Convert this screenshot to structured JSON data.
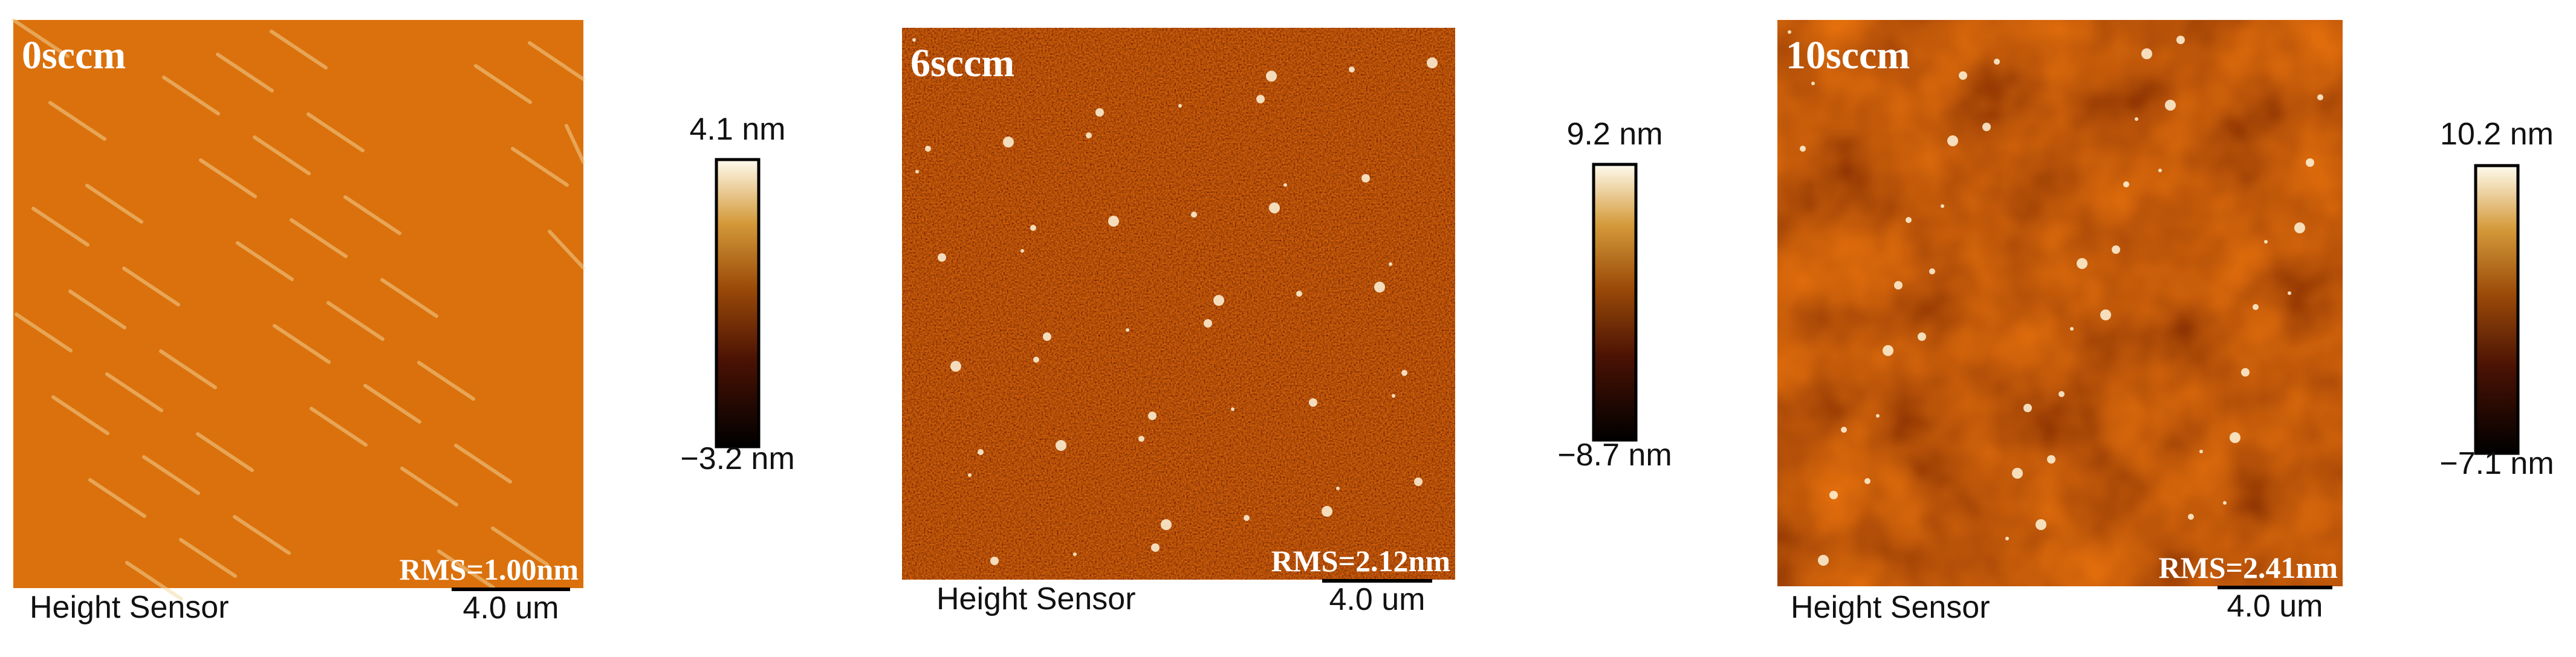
{
  "panels": [
    {
      "label": "0sccm",
      "rms": "RMS=1.00nm",
      "colorbar_max": "4.1 nm",
      "colorbar_min": "−3.2 nm",
      "sensor": "Height Sensor",
      "scale_bar": "4.0 um"
    },
    {
      "label": "6sccm",
      "rms": "RMS=2.12nm",
      "colorbar_max": "9.2 nm",
      "colorbar_min": "−8.7 nm",
      "sensor": "Height Sensor",
      "scale_bar": "4.0 um"
    },
    {
      "label": "10sccm",
      "rms": "RMS=2.41nm",
      "colorbar_max": "10.2 nm",
      "colorbar_min": "−7.1 nm",
      "sensor": "Height Sensor",
      "scale_bar": "4.0 um"
    }
  ]
}
